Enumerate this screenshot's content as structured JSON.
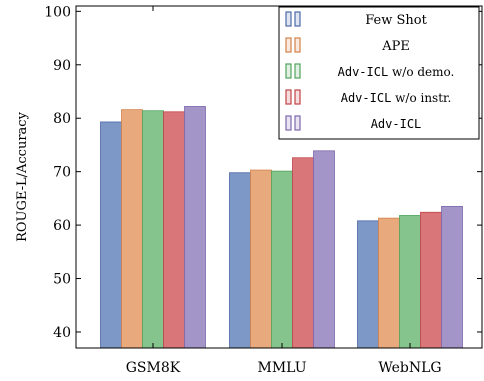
{
  "chart_data": {
    "type": "bar",
    "ylabel": "ROUGE-L/Accuracy",
    "ylim": [
      37,
      101
    ],
    "yticks": [
      40,
      50,
      60,
      70,
      80,
      90,
      100
    ],
    "categories": [
      "GSM8K",
      "MMLU",
      "WebNLG"
    ],
    "series": [
      {
        "name": "Few Shot",
        "values": [
          79.3,
          69.8,
          60.8
        ]
      },
      {
        "name": "APE",
        "values": [
          81.6,
          70.3,
          61.3
        ]
      },
      {
        "name": "Adv-ICL w/o demo.",
        "values": [
          81.4,
          70.1,
          61.8
        ]
      },
      {
        "name": "Adv-ICL w/o instr.",
        "values": [
          81.2,
          72.6,
          62.4
        ]
      },
      {
        "name": "Adv-ICL",
        "values": [
          82.2,
          73.9,
          63.5
        ]
      }
    ],
    "legend_placement": "top-right",
    "grid": false
  },
  "legend": {
    "entries": [
      {
        "prefix": "",
        "suffix": "Few Shot",
        "mono": false
      },
      {
        "prefix": "",
        "suffix": "APE",
        "mono": false
      },
      {
        "prefix": "Adv-ICL",
        "suffix": " w/o demo.",
        "mono": true
      },
      {
        "prefix": "Adv-ICL",
        "suffix": " w/o instr.",
        "mono": true
      },
      {
        "prefix": "Adv-ICL",
        "suffix": "",
        "mono": true
      }
    ]
  },
  "colors": {
    "fills": [
      "#7d97c6",
      "#e8a97c",
      "#86c48e",
      "#d97679",
      "#a495c8"
    ],
    "strokes": [
      "#4c6aa6",
      "#d3814a",
      "#4fa35d",
      "#c04449",
      "#7c68ad"
    ]
  }
}
